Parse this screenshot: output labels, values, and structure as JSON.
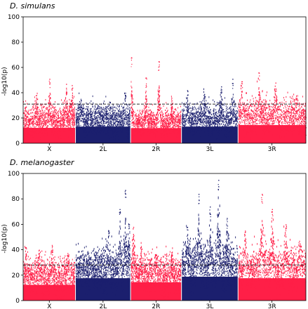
{
  "chart_data": [
    {
      "type": "scatter",
      "title": "D. simulans",
      "ylabel": "-log10(p)",
      "ylim": [
        0,
        100
      ],
      "yticks": [
        0,
        20,
        40,
        60,
        80,
        100
      ],
      "chromosomes": [
        "X",
        "2L",
        "2R",
        "3L",
        "3R"
      ],
      "threshold": 31,
      "grid": false,
      "series": [
        {
          "chromosome": "X",
          "color": "#ff1f47",
          "baseline_mean": 17,
          "baseline_spread": 6,
          "peaks": [
            {
              "x": 0.25,
              "y": 38
            },
            {
              "x": 0.5,
              "y": 51
            },
            {
              "x": 0.82,
              "y": 47
            },
            {
              "x": 0.93,
              "y": 46
            }
          ]
        },
        {
          "chromosome": "2L",
          "color": "#1b1f6e",
          "baseline_mean": 18,
          "baseline_spread": 6,
          "peaks": [
            {
              "x": 0.1,
              "y": 34
            },
            {
              "x": 0.55,
              "y": 27
            },
            {
              "x": 0.9,
              "y": 40
            }
          ]
        },
        {
          "chromosome": "2R",
          "color": "#ff1f47",
          "baseline_mean": 16,
          "baseline_spread": 5,
          "peaks": [
            {
              "x": 0.01,
              "y": 68
            },
            {
              "x": 0.3,
              "y": 52
            },
            {
              "x": 0.55,
              "y": 65
            },
            {
              "x": 0.8,
              "y": 36
            }
          ]
        },
        {
          "chromosome": "3L",
          "color": "#1b1f6e",
          "baseline_mean": 18,
          "baseline_spread": 6,
          "peaks": [
            {
              "x": 0.1,
              "y": 42
            },
            {
              "x": 0.4,
              "y": 39
            },
            {
              "x": 0.7,
              "y": 45
            },
            {
              "x": 0.9,
              "y": 51
            }
          ]
        },
        {
          "chromosome": "3R",
          "color": "#ff1f47",
          "baseline_mean": 20,
          "baseline_spread": 7,
          "peaks": [
            {
              "x": 0.05,
              "y": 49
            },
            {
              "x": 0.3,
              "y": 56
            },
            {
              "x": 0.55,
              "y": 48
            },
            {
              "x": 0.85,
              "y": 36
            }
          ]
        }
      ]
    },
    {
      "type": "scatter",
      "title": "D. melanogaster",
      "ylabel": "-log10(p)",
      "ylim": [
        0,
        100
      ],
      "yticks": [
        0,
        20,
        40,
        60,
        80,
        100
      ],
      "chromosomes": [
        "X",
        "2L",
        "2R",
        "3L",
        "3R"
      ],
      "threshold": 28,
      "grid": false,
      "series": [
        {
          "chromosome": "X",
          "color": "#ff1f47",
          "baseline_mean": 18,
          "baseline_spread": 7,
          "peaks": [
            {
              "x": 0.05,
              "y": 42
            },
            {
              "x": 0.3,
              "y": 40
            },
            {
              "x": 0.55,
              "y": 43
            },
            {
              "x": 0.85,
              "y": 35
            }
          ]
        },
        {
          "chromosome": "2L",
          "color": "#1b1f6e",
          "baseline_mean": 24,
          "baseline_spread": 8,
          "peaks": [
            {
              "x": 0.6,
              "y": 55
            },
            {
              "x": 0.8,
              "y": 72
            },
            {
              "x": 0.9,
              "y": 87
            },
            {
              "x": 0.97,
              "y": 60
            }
          ]
        },
        {
          "chromosome": "2R",
          "color": "#ff1f47",
          "baseline_mean": 20,
          "baseline_spread": 7,
          "peaks": [
            {
              "x": 0.05,
              "y": 58
            },
            {
              "x": 0.2,
              "y": 42
            },
            {
              "x": 0.5,
              "y": 36
            },
            {
              "x": 0.8,
              "y": 38
            }
          ]
        },
        {
          "chromosome": "3L",
          "color": "#1b1f6e",
          "baseline_mean": 26,
          "baseline_spread": 9,
          "peaks": [
            {
              "x": 0.1,
              "y": 58
            },
            {
              "x": 0.3,
              "y": 84
            },
            {
              "x": 0.5,
              "y": 74
            },
            {
              "x": 0.65,
              "y": 95
            },
            {
              "x": 0.8,
              "y": 65
            }
          ]
        },
        {
          "chromosome": "3R",
          "color": "#ff1f47",
          "baseline_mean": 24,
          "baseline_spread": 8,
          "peaks": [
            {
              "x": 0.1,
              "y": 55
            },
            {
              "x": 0.35,
              "y": 84
            },
            {
              "x": 0.5,
              "y": 72
            },
            {
              "x": 0.7,
              "y": 60
            },
            {
              "x": 0.9,
              "y": 47
            }
          ]
        }
      ]
    }
  ]
}
